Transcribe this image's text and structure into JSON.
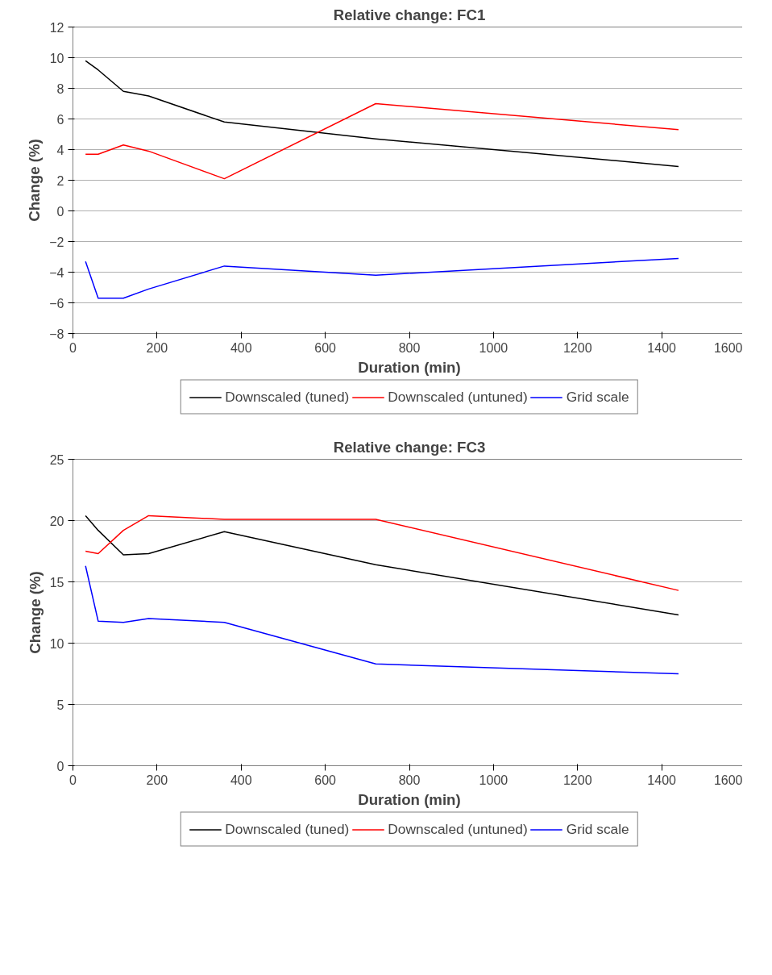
{
  "chart_data": [
    {
      "type": "line",
      "title": "Relative change: FC1",
      "xlabel": "Duration (min)",
      "ylabel": "Change (%)",
      "x": [
        30,
        60,
        120,
        180,
        360,
        720,
        1440
      ],
      "xlim": [
        0,
        1600
      ],
      "xticks": [
        0,
        200,
        400,
        600,
        800,
        1000,
        1200,
        1400,
        1600
      ],
      "ylim": [
        -8,
        12
      ],
      "yticks": [
        -8,
        -6,
        -4,
        -2,
        0,
        2,
        4,
        6,
        8,
        10,
        12
      ],
      "grid": "y",
      "legend": "bottom",
      "marker": "none",
      "line_style": "solid",
      "series": [
        {
          "name": "Downscaled (tuned)",
          "color": "#000000",
          "values": [
            9.8,
            9.2,
            7.8,
            7.5,
            5.8,
            4.7,
            2.9
          ]
        },
        {
          "name": "Downscaled (untuned)",
          "color": "#ff0000",
          "values": [
            3.7,
            3.7,
            4.3,
            3.9,
            2.1,
            7.0,
            5.3
          ]
        },
        {
          "name": "Grid scale",
          "color": "#0000ff",
          "values": [
            -3.3,
            -5.7,
            -5.7,
            -5.1,
            -3.6,
            -4.2,
            -3.1
          ]
        }
      ]
    },
    {
      "type": "line",
      "title": "Relative change: FC3",
      "xlabel": "Duration (min)",
      "ylabel": "Change (%)",
      "x": [
        30,
        60,
        120,
        180,
        360,
        720,
        1440
      ],
      "xlim": [
        0,
        1600
      ],
      "xticks": [
        0,
        200,
        400,
        600,
        800,
        1000,
        1200,
        1400,
        1600
      ],
      "ylim": [
        0,
        25
      ],
      "yticks": [
        0,
        5,
        10,
        15,
        20,
        25
      ],
      "grid": "y",
      "legend": "bottom",
      "marker": "none",
      "line_style": "solid",
      "series": [
        {
          "name": "Downscaled (tuned)",
          "color": "#000000",
          "values": [
            20.4,
            19.2,
            17.2,
            17.3,
            19.1,
            16.4,
            12.3
          ]
        },
        {
          "name": "Downscaled (untuned)",
          "color": "#ff0000",
          "values": [
            17.5,
            17.3,
            19.2,
            20.4,
            20.1,
            20.1,
            14.3
          ]
        },
        {
          "name": "Grid scale",
          "color": "#0000ff",
          "values": [
            16.3,
            11.8,
            11.7,
            12.0,
            11.7,
            8.3,
            7.5
          ]
        }
      ]
    }
  ]
}
